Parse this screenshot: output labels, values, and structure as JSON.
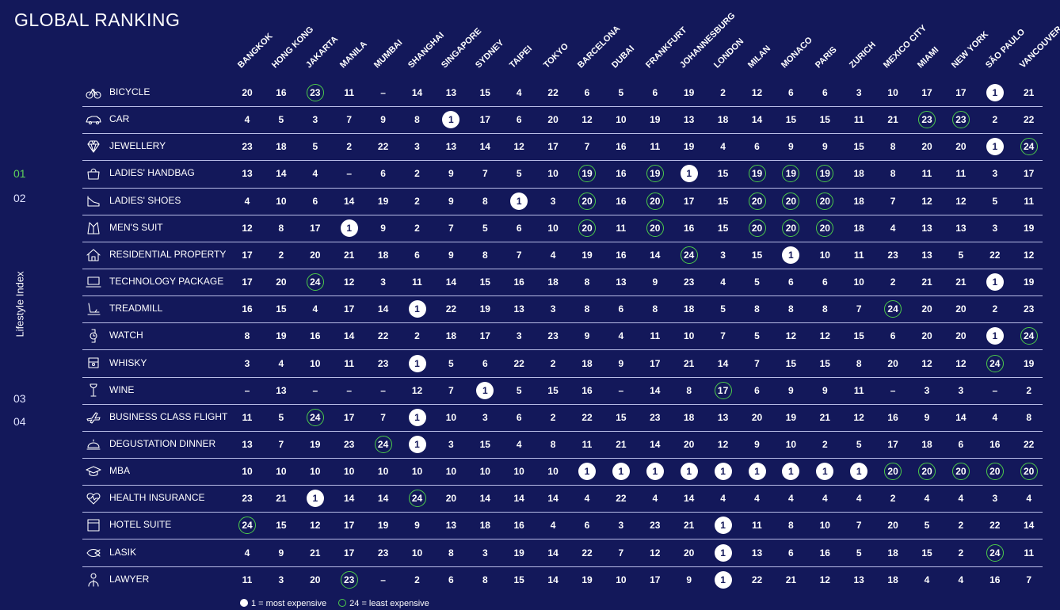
{
  "header": {
    "title": "GLOBAL RANKING"
  },
  "nav": {
    "items": [
      "01",
      "02",
      "03",
      "04"
    ],
    "active": "01",
    "side_label": "Lifestyle Index"
  },
  "legend": {
    "most_label": "1 = most expensive",
    "least_label": "24 = least expensive"
  },
  "colors": {
    "background": "#13185a",
    "accent_green": "#4ccb4a",
    "nav_active": "#5fd35a"
  },
  "chart_data": {
    "type": "table",
    "title": "GLOBAL RANKING",
    "columns": [
      "BANGKOK",
      "HONG KONG",
      "JAKARTA",
      "MANILA",
      "MUMBAI",
      "SHANGHAI",
      "SINGAPORE",
      "SYDNEY",
      "TAIPEI",
      "TOKYO",
      "BARCELONA",
      "DUBAI",
      "FRANKFURT",
      "JOHANNESBURG",
      "LONDON",
      "MILAN",
      "MONACO",
      "PARIS",
      "ZURICH",
      "MEXICO CITY",
      "MIAMI",
      "NEW YORK",
      "SÃO PAULO",
      "VANCOUVER"
    ],
    "rows": [
      {
        "label": "BICYCLE",
        "icon": "bicycle-icon",
        "values": [
          "20",
          "16",
          "23",
          "11",
          "–",
          "14",
          "13",
          "15",
          "4",
          "22",
          "6",
          "5",
          "6",
          "19",
          "2",
          "12",
          "6",
          "6",
          "3",
          "10",
          "17",
          "17",
          "1",
          "21"
        ]
      },
      {
        "label": "CAR",
        "icon": "car-icon",
        "values": [
          "4",
          "5",
          "3",
          "7",
          "9",
          "8",
          "1",
          "17",
          "6",
          "20",
          "12",
          "10",
          "19",
          "13",
          "18",
          "14",
          "15",
          "15",
          "11",
          "21",
          "23",
          "23",
          "2",
          "22"
        ]
      },
      {
        "label": "JEWELLERY",
        "icon": "diamond-icon",
        "values": [
          "23",
          "18",
          "5",
          "2",
          "22",
          "3",
          "13",
          "14",
          "12",
          "17",
          "7",
          "16",
          "11",
          "19",
          "4",
          "6",
          "9",
          "9",
          "15",
          "8",
          "20",
          "20",
          "1",
          "24"
        ]
      },
      {
        "label": "LADIES' HANDBAG",
        "icon": "handbag-icon",
        "values": [
          "13",
          "14",
          "4",
          "–",
          "6",
          "2",
          "9",
          "7",
          "5",
          "10",
          "19",
          "16",
          "19",
          "1",
          "15",
          "19",
          "19",
          "19",
          "18",
          "8",
          "11",
          "11",
          "3",
          "17"
        ]
      },
      {
        "label": "LADIES' SHOES",
        "icon": "shoe-icon",
        "values": [
          "4",
          "10",
          "6",
          "14",
          "19",
          "2",
          "9",
          "8",
          "1",
          "3",
          "20",
          "16",
          "20",
          "17",
          "15",
          "20",
          "20",
          "20",
          "18",
          "7",
          "12",
          "12",
          "5",
          "11"
        ]
      },
      {
        "label": "MEN'S SUIT",
        "icon": "suit-icon",
        "values": [
          "12",
          "8",
          "17",
          "1",
          "9",
          "2",
          "7",
          "5",
          "6",
          "10",
          "20",
          "11",
          "20",
          "16",
          "15",
          "20",
          "20",
          "20",
          "18",
          "4",
          "13",
          "13",
          "3",
          "19"
        ]
      },
      {
        "label": "RESIDENTIAL PROPERTY",
        "icon": "house-icon",
        "values": [
          "17",
          "2",
          "20",
          "21",
          "18",
          "6",
          "9",
          "8",
          "7",
          "4",
          "19",
          "16",
          "14",
          "24",
          "3",
          "15",
          "1",
          "10",
          "11",
          "23",
          "13",
          "5",
          "22",
          "12"
        ]
      },
      {
        "label": "TECHNOLOGY PACKAGE",
        "icon": "laptop-icon",
        "values": [
          "17",
          "20",
          "24",
          "12",
          "3",
          "11",
          "14",
          "15",
          "16",
          "18",
          "8",
          "13",
          "9",
          "23",
          "4",
          "5",
          "6",
          "6",
          "10",
          "2",
          "21",
          "21",
          "1",
          "19"
        ]
      },
      {
        "label": "TREADMILL",
        "icon": "treadmill-icon",
        "values": [
          "16",
          "15",
          "4",
          "17",
          "14",
          "1",
          "22",
          "19",
          "13",
          "3",
          "8",
          "6",
          "8",
          "18",
          "5",
          "8",
          "8",
          "8",
          "7",
          "24",
          "20",
          "20",
          "2",
          "23"
        ]
      },
      {
        "label": "WATCH",
        "icon": "watch-icon",
        "values": [
          "8",
          "19",
          "16",
          "14",
          "22",
          "2",
          "18",
          "17",
          "3",
          "23",
          "9",
          "4",
          "11",
          "10",
          "7",
          "5",
          "12",
          "12",
          "15",
          "6",
          "20",
          "20",
          "1",
          "24"
        ]
      },
      {
        "label": "WHISKY",
        "icon": "whisky-icon",
        "values": [
          "3",
          "4",
          "10",
          "11",
          "23",
          "1",
          "5",
          "6",
          "22",
          "2",
          "18",
          "9",
          "17",
          "21",
          "14",
          "7",
          "15",
          "15",
          "8",
          "20",
          "12",
          "12",
          "24",
          "19"
        ]
      },
      {
        "label": "WINE",
        "icon": "wine-glass-icon",
        "values": [
          "–",
          "13",
          "–",
          "–",
          "–",
          "12",
          "7",
          "1",
          "5",
          "15",
          "16",
          "–",
          "14",
          "8",
          "17",
          "6",
          "9",
          "9",
          "11",
          "–",
          "3",
          "3",
          "–",
          "2"
        ]
      },
      {
        "label": "BUSINESS CLASS FLIGHT",
        "icon": "plane-icon",
        "values": [
          "11",
          "5",
          "24",
          "17",
          "7",
          "1",
          "10",
          "3",
          "6",
          "2",
          "22",
          "15",
          "23",
          "18",
          "13",
          "20",
          "19",
          "21",
          "12",
          "16",
          "9",
          "14",
          "4",
          "8"
        ]
      },
      {
        "label": "DEGUSTATION DINNER",
        "icon": "cloche-icon",
        "values": [
          "13",
          "7",
          "19",
          "23",
          "24",
          "1",
          "3",
          "15",
          "4",
          "8",
          "11",
          "21",
          "14",
          "20",
          "12",
          "9",
          "10",
          "2",
          "5",
          "17",
          "18",
          "6",
          "16",
          "22"
        ]
      },
      {
        "label": "MBA",
        "icon": "graduation-cap-icon",
        "values": [
          "10",
          "10",
          "10",
          "10",
          "10",
          "10",
          "10",
          "10",
          "10",
          "10",
          "1",
          "1",
          "1",
          "1",
          "1",
          "1",
          "1",
          "1",
          "1",
          "20",
          "20",
          "20",
          "20",
          "20"
        ]
      },
      {
        "label": "HEALTH INSURANCE",
        "icon": "heartbeat-icon",
        "values": [
          "23",
          "21",
          "1",
          "14",
          "14",
          "24",
          "20",
          "14",
          "14",
          "14",
          "4",
          "22",
          "4",
          "14",
          "4",
          "4",
          "4",
          "4",
          "4",
          "2",
          "4",
          "4",
          "3",
          "4"
        ]
      },
      {
        "label": "HOTEL SUITE",
        "icon": "hotel-icon",
        "values": [
          "24",
          "15",
          "12",
          "17",
          "19",
          "9",
          "13",
          "18",
          "16",
          "4",
          "6",
          "3",
          "23",
          "21",
          "1",
          "11",
          "8",
          "10",
          "7",
          "20",
          "5",
          "2",
          "22",
          "14"
        ]
      },
      {
        "label": "LASIK",
        "icon": "eye-laser-icon",
        "values": [
          "4",
          "9",
          "21",
          "17",
          "23",
          "10",
          "8",
          "3",
          "19",
          "14",
          "22",
          "7",
          "12",
          "20",
          "1",
          "13",
          "6",
          "16",
          "5",
          "18",
          "15",
          "2",
          "24",
          "11"
        ]
      },
      {
        "label": "LAWYER",
        "icon": "lawyer-icon",
        "values": [
          "11",
          "3",
          "20",
          "23",
          "–",
          "2",
          "6",
          "8",
          "15",
          "14",
          "19",
          "10",
          "17",
          "9",
          "1",
          "22",
          "21",
          "12",
          "13",
          "18",
          "4",
          "4",
          "16",
          "7"
        ]
      }
    ],
    "highlight_most": "1",
    "highlight_least": [
      "20",
      "23",
      "24",
      "17",
      "19"
    ]
  }
}
